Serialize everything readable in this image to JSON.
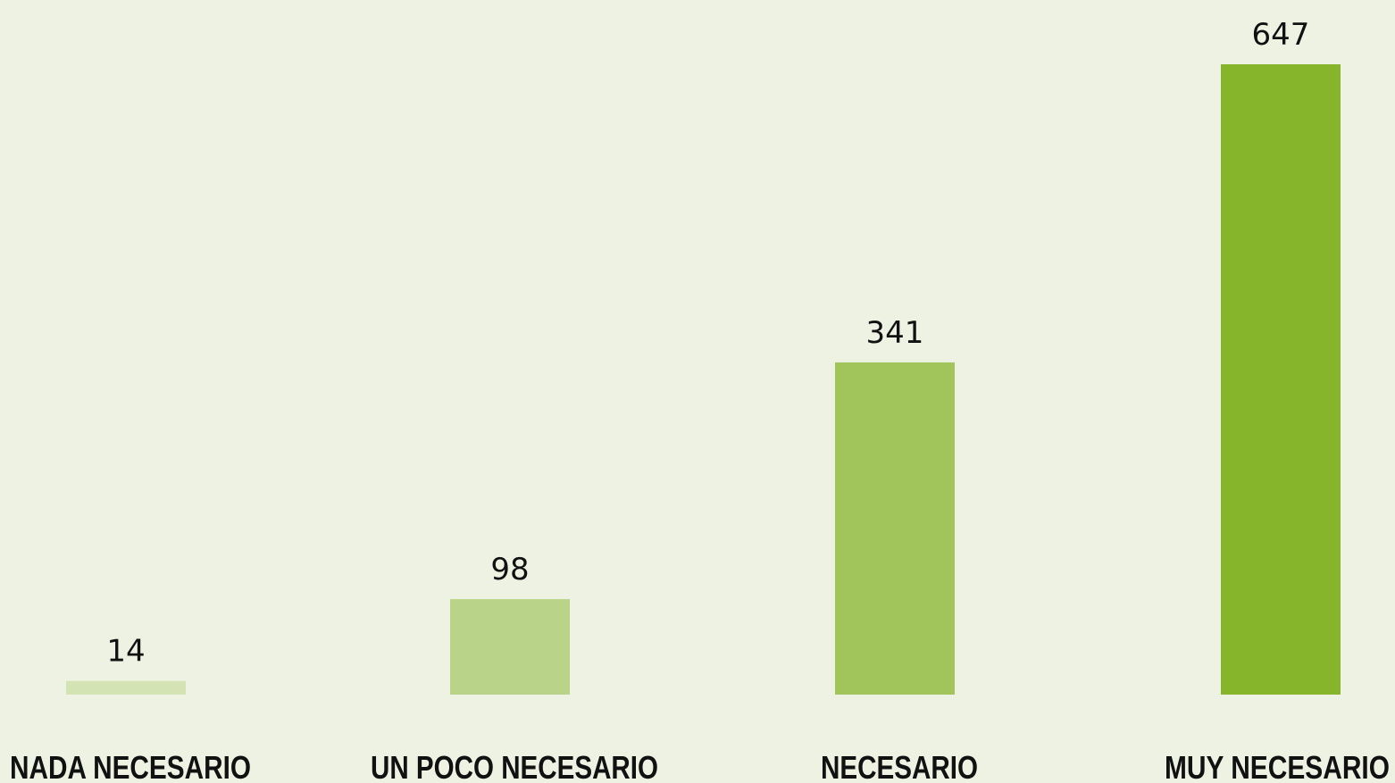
{
  "chart_data": {
    "type": "bar",
    "categories": [
      "NADA NECESARIO",
      "UN POCO NECESARIO",
      "NECESARIO",
      "MUY NECESARIO"
    ],
    "values": [
      14,
      98,
      341,
      647
    ],
    "value_labels": [
      "14",
      "98",
      "341",
      "647"
    ],
    "title": "",
    "xlabel": "",
    "ylabel": "",
    "ylim": [
      0,
      647
    ],
    "grid": false,
    "legend": "none",
    "bar_colors": [
      "#D4E3B4",
      "#B9D488",
      "#A1C45B",
      "#86B42A"
    ],
    "background": "#EEF2E3"
  }
}
